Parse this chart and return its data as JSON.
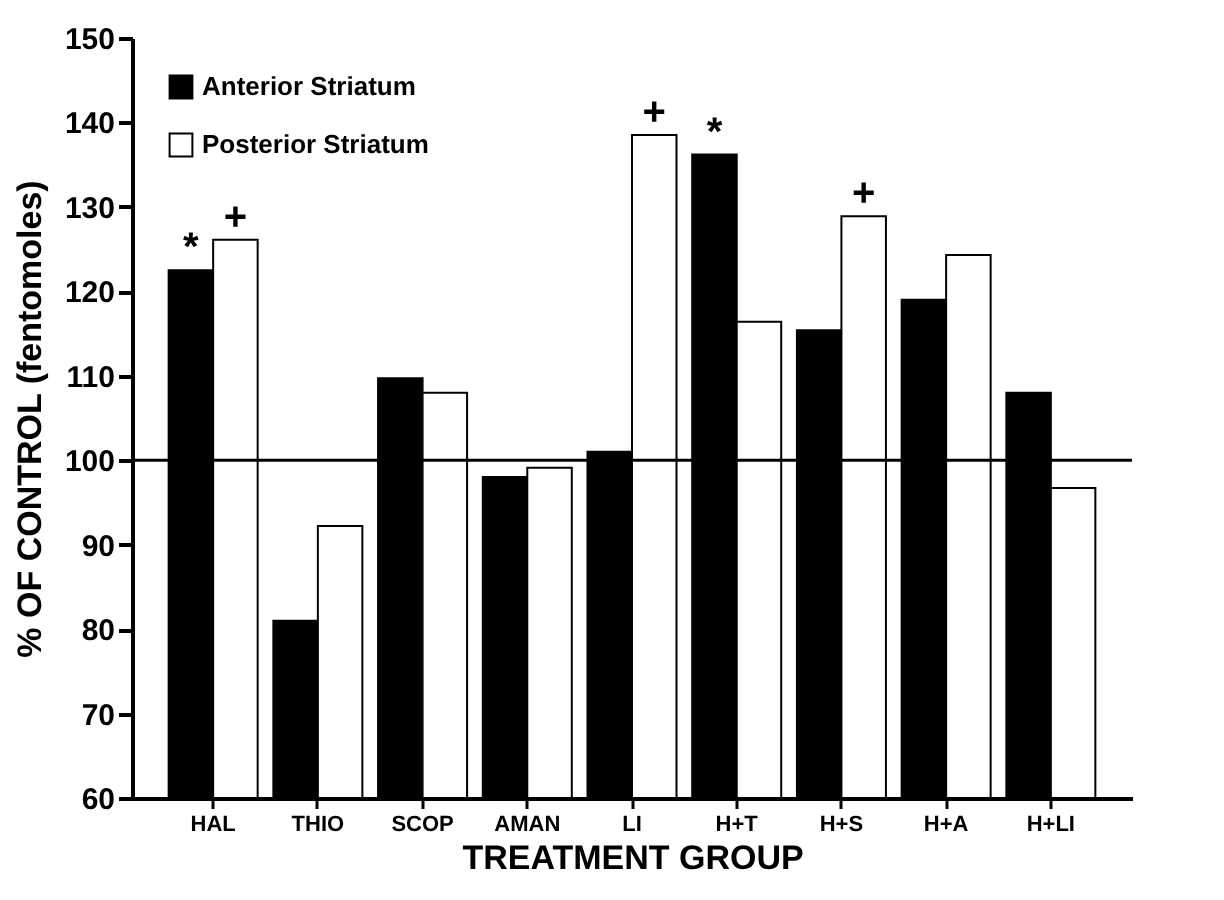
{
  "chart_data": {
    "type": "bar",
    "xlabel": "TREATMENT GROUP",
    "ylabel": "% OF CONTROL (fentomoles)",
    "categories": [
      "HAL",
      "THIO",
      "SCOP",
      "AMAN",
      "LI",
      "H+T",
      "H+S",
      "H+A",
      "H+LI"
    ],
    "series": [
      {
        "name": "Anterior Striatum",
        "color": "#000000",
        "values": [
          122.5,
          81,
          109.7,
          98,
          101,
          136.2,
          115.4,
          119,
          108
        ]
      },
      {
        "name": "Posterior Striatum",
        "color": "#ffffff",
        "values": [
          126.1,
          92.2,
          108,
          99.1,
          138.5,
          116.4,
          128.9,
          124.3,
          96.7
        ]
      }
    ],
    "ylim": [
      60,
      150
    ],
    "yticks": [
      60,
      70,
      80,
      90,
      100,
      110,
      120,
      130,
      140,
      150
    ],
    "ref_lines": [
      {
        "axis": "y",
        "value": 100,
        "color": "#000000"
      }
    ],
    "annotations": [
      {
        "text": "*",
        "x": "HAL",
        "y": 122.5
      },
      {
        "text": "+",
        "x": "HAL",
        "y": 126.1
      },
      {
        "text": "+",
        "x": "LI",
        "y": 138.5
      },
      {
        "text": "*",
        "x": "H+T",
        "y": 136.2
      },
      {
        "text": "+",
        "x": "H+S",
        "y": 128.9
      }
    ],
    "legend": "top left",
    "grid": false
  }
}
